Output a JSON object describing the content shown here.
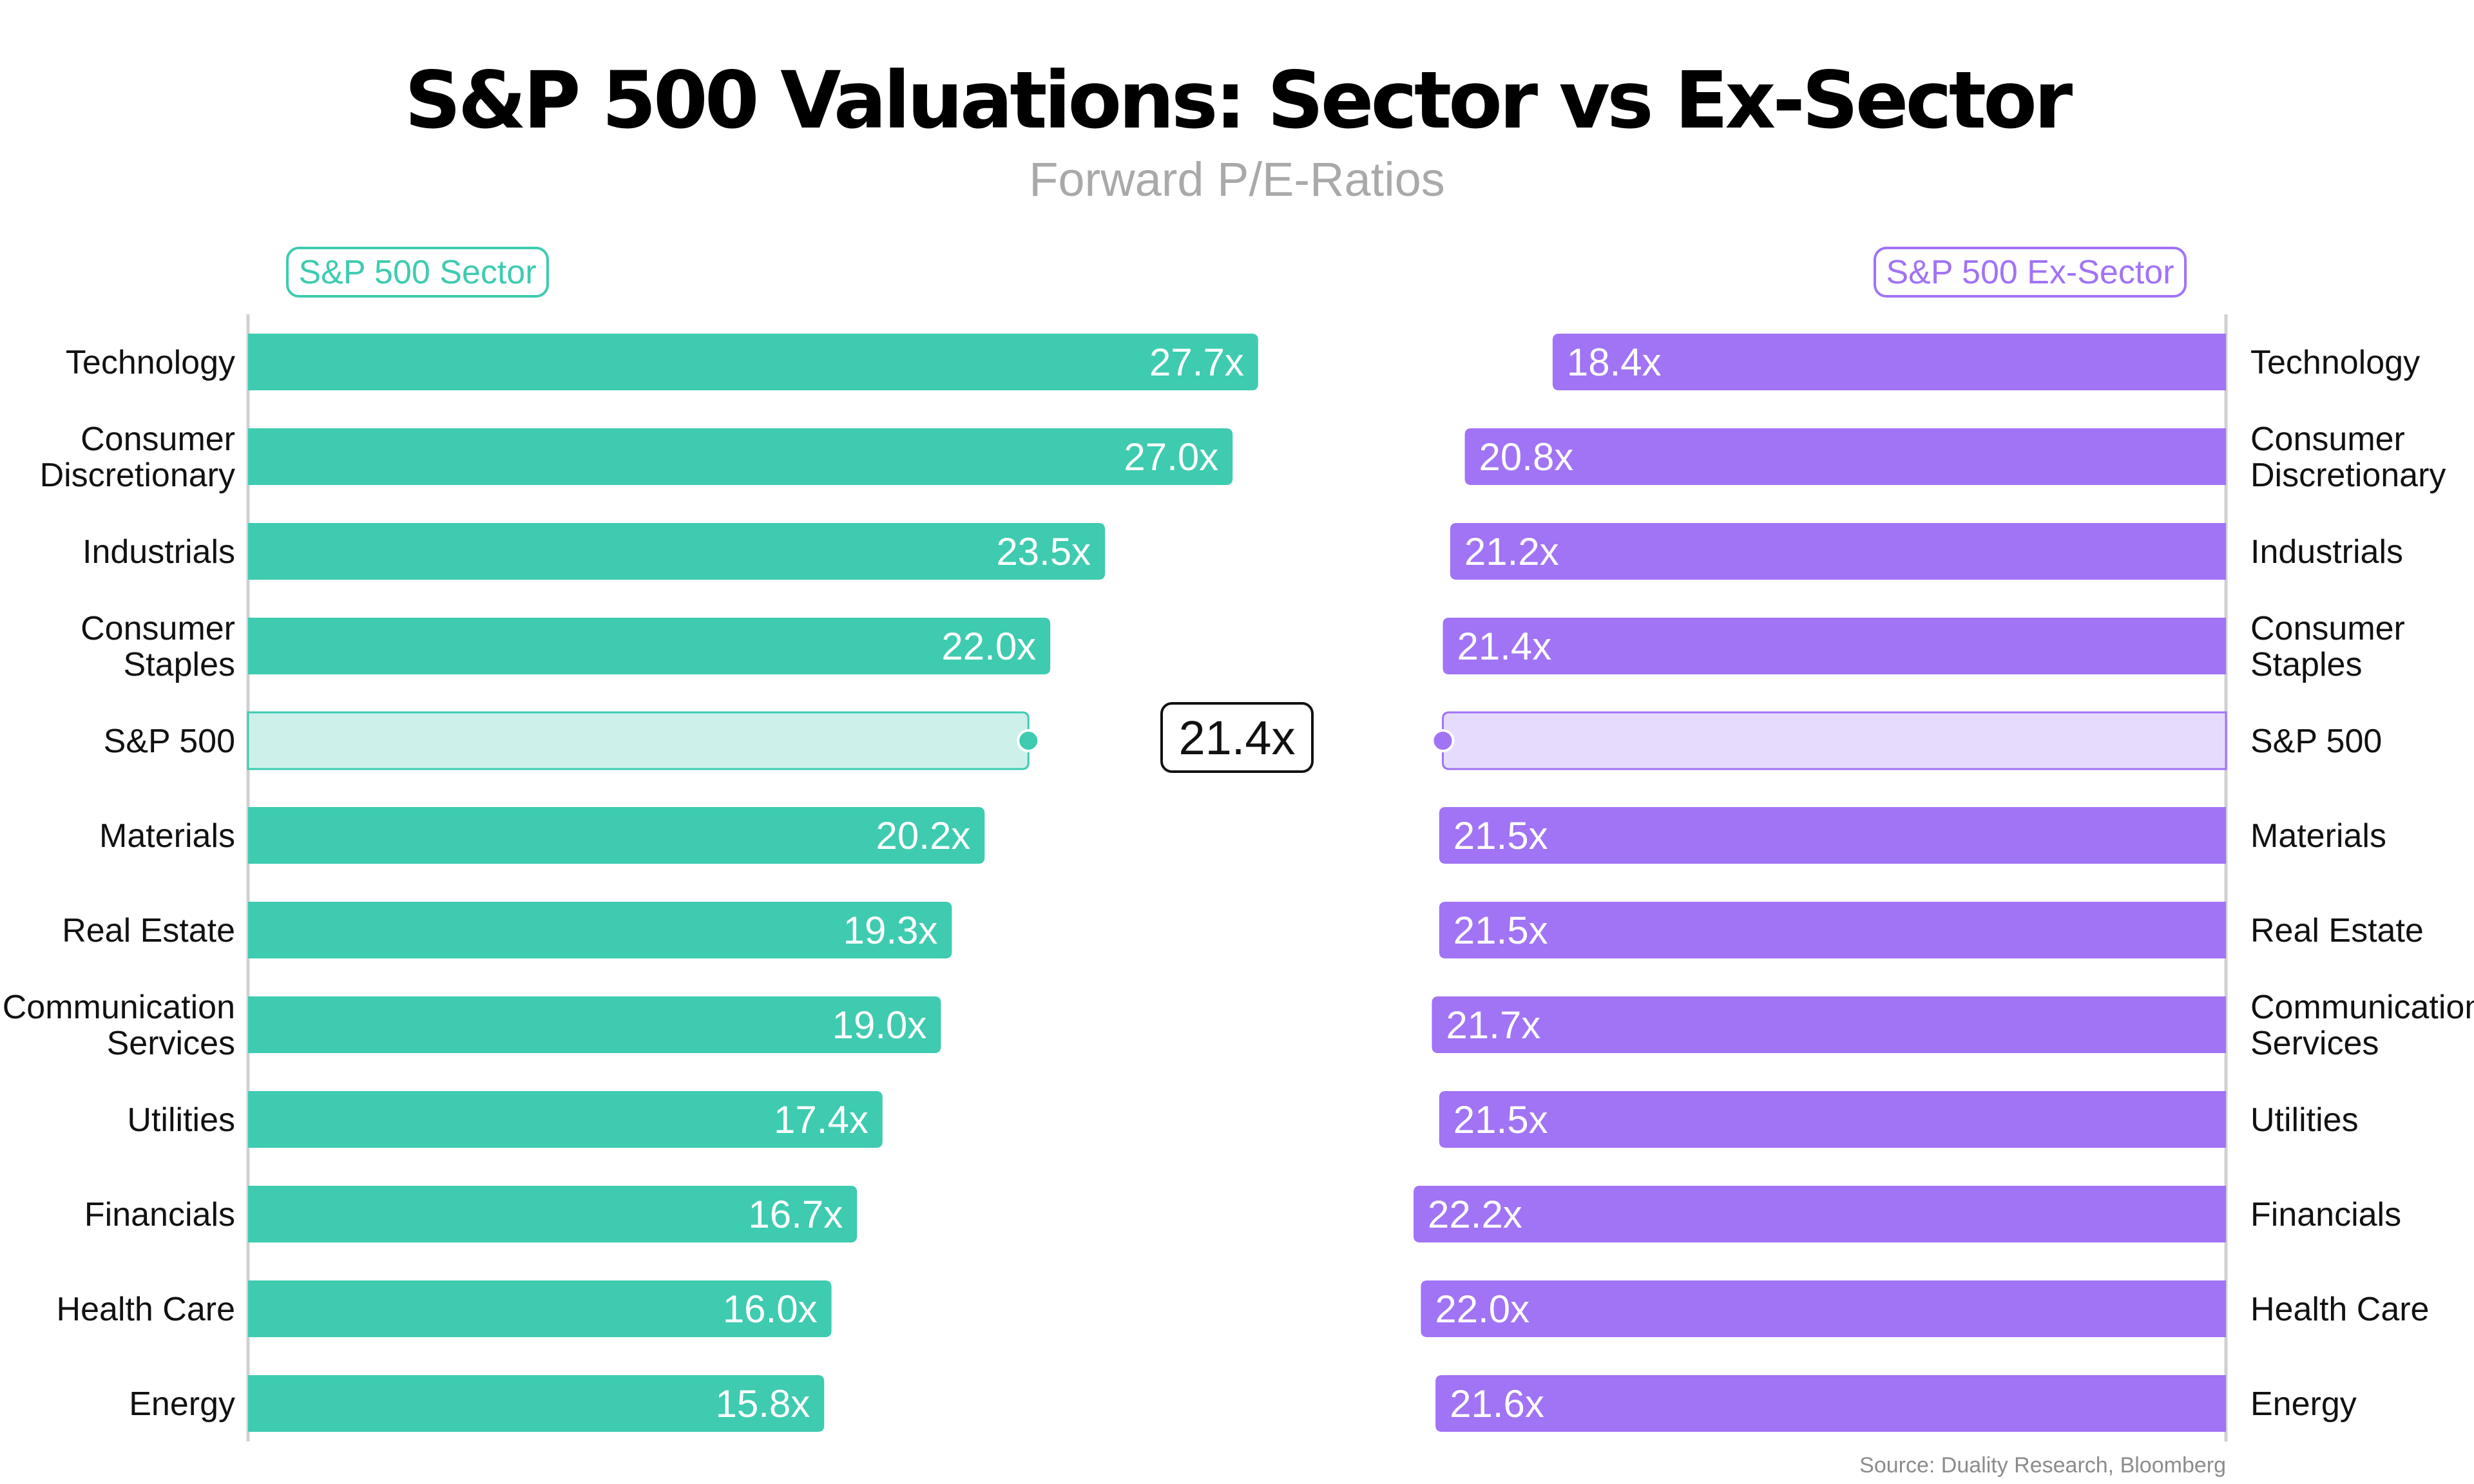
{
  "chart_data": {
    "type": "bar",
    "title": "S&P 500 Valuations: Sector vs Ex-Sector",
    "subtitle": "Forward P/E-Ratios",
    "source": "Source: Duality Research, Bloomberg",
    "categories": [
      [
        "Technology"
      ],
      [
        "Consumer",
        "Discretionary"
      ],
      [
        "Industrials"
      ],
      [
        "Consumer",
        "Staples"
      ],
      [
        "S&P 500"
      ],
      [
        "Materials"
      ],
      [
        "Real Estate"
      ],
      [
        "Communication",
        "Services"
      ],
      [
        "Utilities"
      ],
      [
        "Financials"
      ],
      [
        "Health Care"
      ],
      [
        "Energy"
      ]
    ],
    "benchmark_category": "S&P 500",
    "benchmark_value": 21.4,
    "benchmark_label": "21.4x",
    "series": [
      {
        "name": "S&P 500 Sector",
        "color": "#3ecbb0",
        "light_color": "#cdf1ea",
        "values": [
          27.7,
          27.0,
          23.5,
          22.0,
          21.4,
          20.2,
          19.3,
          19.0,
          17.4,
          16.7,
          16.0,
          15.8
        ],
        "labels": [
          "27.7x",
          "27.0x",
          "23.5x",
          "22.0x",
          "",
          "20.2x",
          "19.3x",
          "19.0x",
          "17.4x",
          "16.7x",
          "16.0x",
          "15.8x"
        ]
      },
      {
        "name": "S&P 500 Ex-Sector",
        "color": "#a173f5",
        "light_color": "#e6dbfd",
        "values": [
          18.4,
          20.8,
          21.2,
          21.4,
          21.4,
          21.5,
          21.5,
          21.7,
          21.5,
          22.2,
          22.0,
          21.6
        ],
        "labels": [
          "18.4x",
          "20.8x",
          "21.2x",
          "21.4x",
          "",
          "21.5x",
          "21.5x",
          "21.7x",
          "21.5x",
          "22.2x",
          "22.0x",
          "21.6x"
        ]
      }
    ],
    "value_suffix": "x",
    "axis_color": "#d0d0d0"
  }
}
